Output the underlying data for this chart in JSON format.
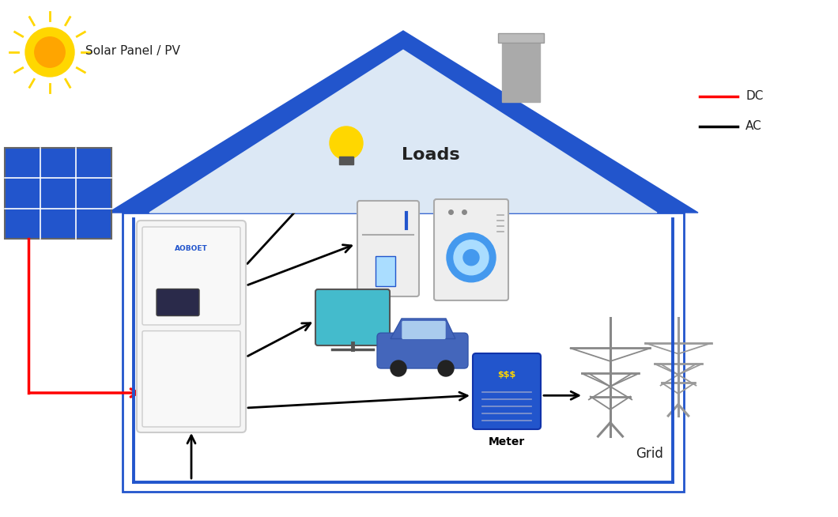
{
  "background_color": "#ffffff",
  "colors": {
    "dc_line": "#ff0000",
    "ac_line": "#000000",
    "blue_border": "#2255cc",
    "roof_color": "#2255cc",
    "roof_inner": "#dce8f5",
    "inverter_body": "#f5f5f5",
    "inverter_border": "#cccccc",
    "meter_body": "#2255cc",
    "solar_panel_blue": "#2255cc",
    "sun_yellow": "#FFD700",
    "sun_orange": "#FFA500",
    "text_dark": "#222222",
    "chimney_gray": "#aaaaaa",
    "grid_gray": "#888888"
  },
  "labels": {
    "solar": "Solar Panel / PV",
    "loads": "Loads",
    "meter": "Meter",
    "grid": "Grid",
    "dc": "DC",
    "ac": "AC",
    "brand": "AOBOET",
    "meter_text": "$$$"
  }
}
